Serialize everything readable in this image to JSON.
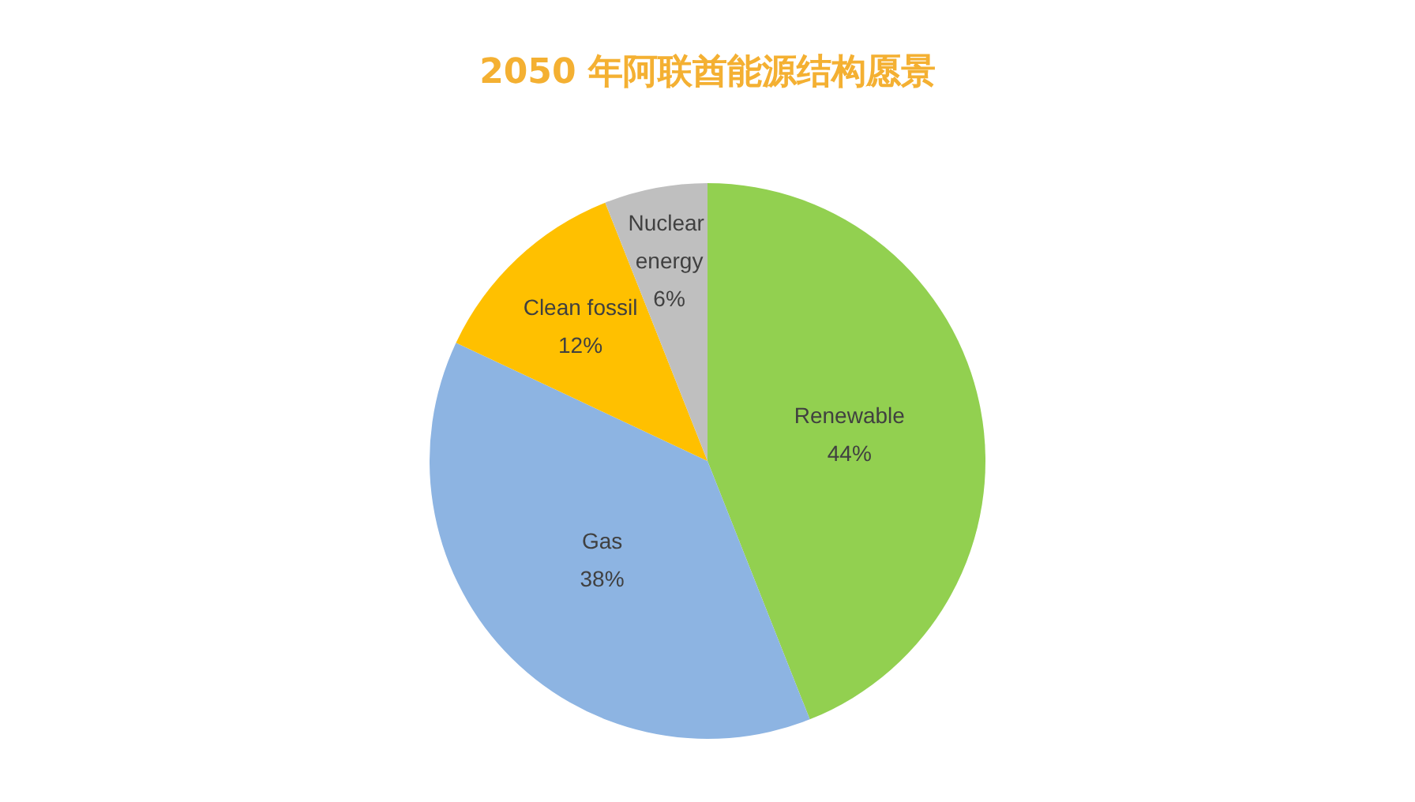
{
  "chart_data": {
    "type": "pie",
    "title": "2050 年阿联酋能源结构愿景",
    "categories": [
      "Renewable",
      "Gas",
      "Clean fossil",
      "Nuclear energy"
    ],
    "values": [
      44,
      38,
      12,
      6
    ],
    "value_labels": [
      "44%",
      "38%",
      "12%",
      "6%"
    ],
    "colors": [
      "#92d050",
      "#8db4e2",
      "#ffc000",
      "#bfbfbf"
    ],
    "legend": false
  }
}
